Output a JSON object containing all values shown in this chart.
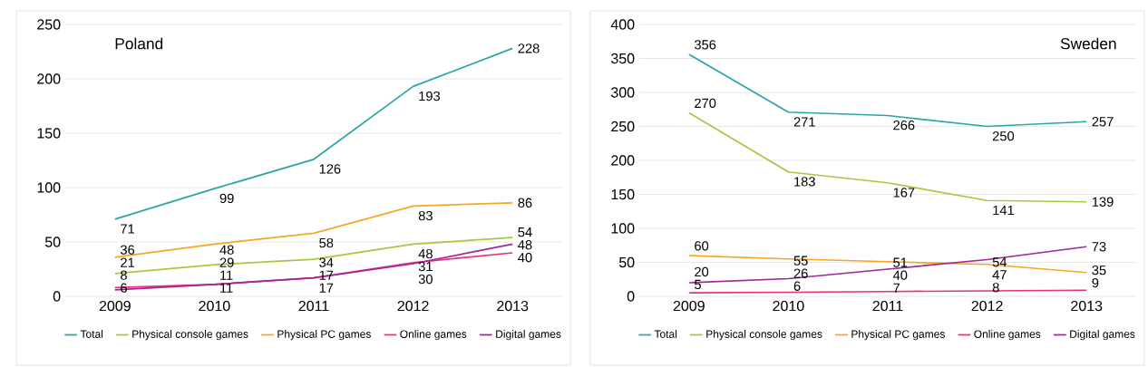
{
  "chart_data": [
    {
      "type": "line",
      "title": "Poland",
      "categories": [
        "2009",
        "2010",
        "2011",
        "2012",
        "2013"
      ],
      "ylim": [
        0,
        250
      ],
      "yticks": [
        0,
        50,
        100,
        150,
        200,
        250
      ],
      "grid": "y",
      "legend": "bottom",
      "data_labels": true,
      "series": [
        {
          "name": "Total",
          "color": "#2aa6a6",
          "values": [
            71,
            99,
            126,
            193,
            228
          ]
        },
        {
          "name": "Physical console games",
          "color": "#a3c940",
          "values": [
            21,
            29,
            34,
            48,
            54
          ]
        },
        {
          "name": "Physical PC games",
          "color": "#f5a623",
          "values": [
            36,
            48,
            58,
            83,
            86
          ]
        },
        {
          "name": "Online games",
          "color": "#e8336f",
          "values": [
            8,
            11,
            17,
            31,
            40
          ]
        },
        {
          "name": "Digital games",
          "color": "#a0279a",
          "values": [
            6,
            11,
            17,
            30,
            48
          ]
        }
      ]
    },
    {
      "type": "line",
      "title": "Sweden",
      "categories": [
        "2009",
        "2010",
        "2011",
        "2012",
        "2013"
      ],
      "ylim": [
        0,
        400
      ],
      "yticks": [
        0,
        50,
        100,
        150,
        200,
        250,
        300,
        350,
        400
      ],
      "grid": "y",
      "legend": "bottom",
      "data_labels": true,
      "series": [
        {
          "name": "Total",
          "color": "#2aa6a6",
          "values": [
            356,
            271,
            266,
            250,
            257
          ]
        },
        {
          "name": "Physical console games",
          "color": "#a3c940",
          "values": [
            270,
            183,
            167,
            141,
            139
          ]
        },
        {
          "name": "Physical PC games",
          "color": "#f5a623",
          "values": [
            60,
            55,
            51,
            47,
            35
          ]
        },
        {
          "name": "Online games",
          "color": "#e8336f",
          "values": [
            5,
            6,
            7,
            8,
            9
          ]
        },
        {
          "name": "Digital games",
          "color": "#a0279a",
          "values": [
            20,
            26,
            40,
            54,
            73
          ]
        }
      ]
    }
  ]
}
